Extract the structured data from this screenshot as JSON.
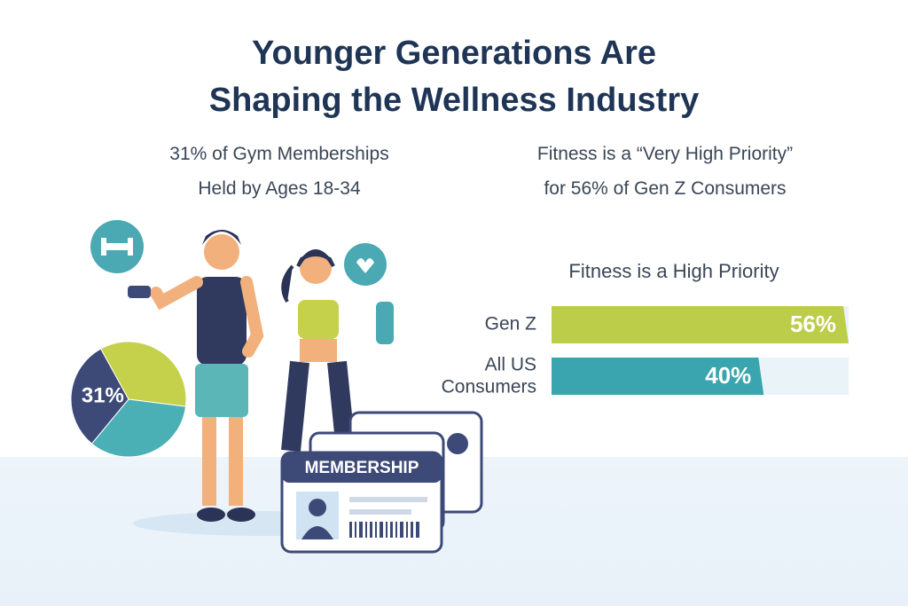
{
  "title": [
    "Younger Generations Are",
    "Shaping the Wellness Industry"
  ],
  "stats": [
    [
      "31% of Gym Memberships",
      "Held by Ages 18-34"
    ],
    [
      "Fitness is a “Very High Priority”",
      "for 56% of Gen Z Consumers"
    ]
  ],
  "card_label": "MEMBERSHIP",
  "chart_data": [
    {
      "type": "pie",
      "values": [
        31,
        35,
        34
      ],
      "colors": [
        "#3d4a78",
        "#c5d14a",
        "#4bb0b5"
      ],
      "value_labels": [
        "31%",
        null,
        null
      ]
    },
    {
      "type": "bar",
      "orientation": "horizontal",
      "title": "Fitness is a High Priority",
      "categories": [
        "Gen Z",
        "All US Consumers"
      ],
      "values": [
        56,
        40
      ],
      "value_labels": [
        "56%",
        "40%"
      ],
      "colors": [
        "#bccd4a",
        "#3aa5ae"
      ],
      "xlim": [
        0,
        56
      ]
    }
  ]
}
